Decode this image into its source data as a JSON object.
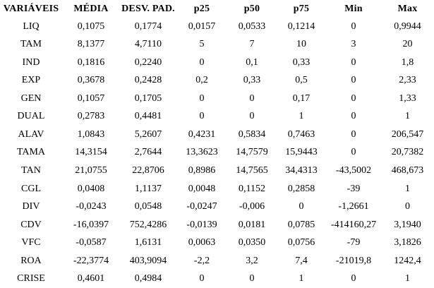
{
  "table": {
    "columns": [
      "VARIÁVEIS",
      "MÉDIA",
      "DESV. PAD.",
      "p25",
      "p50",
      "p75",
      "Min",
      "Max"
    ],
    "rows": [
      [
        "LIQ",
        "0,1075",
        "0,1774",
        "0,0157",
        "0,0533",
        "0,1214",
        "0",
        "0,9944"
      ],
      [
        "TAM",
        "8,1377",
        "4,7110",
        "5",
        "7",
        "10",
        "3",
        "20"
      ],
      [
        "IND",
        "0,1816",
        "0,2240",
        "0",
        "0,1",
        "0,33",
        "0",
        "1,8"
      ],
      [
        "EXP",
        "0,3678",
        "0,2428",
        "0,2",
        "0,33",
        "0,5",
        "0",
        "2,33"
      ],
      [
        "GEN",
        "0,1057",
        "0,1705",
        "0",
        "0",
        "0,17",
        "0",
        "1,33"
      ],
      [
        "DUAL",
        "0,2783",
        "0,4481",
        "0",
        "0",
        "1",
        "0",
        "1"
      ],
      [
        "ALAV",
        "1,0843",
        "5,2607",
        "0,4231",
        "0,5834",
        "0,7463",
        "0",
        "206,547"
      ],
      [
        "TAMA",
        "14,3154",
        "2,7644",
        "13,3623",
        "14,7579",
        "15,9443",
        "0",
        "20,7382"
      ],
      [
        "TAN",
        "21,0755",
        "22,8706",
        "0,8986",
        "14,7565",
        "34,4313",
        "-43,5002",
        "468,673"
      ],
      [
        "CGL",
        "0,0408",
        "1,1137",
        "0,0048",
        "0,1152",
        "0,2858",
        "-39",
        "1"
      ],
      [
        "DIV",
        "-0,0243",
        "0,0548",
        "-0,0247",
        "-0,006",
        "0",
        "-1,2661",
        "0"
      ],
      [
        "CDV",
        "-16,0397",
        "752,4286",
        "-0,0139",
        "0,0181",
        "0,0785",
        "-414160,27",
        "3,1940"
      ],
      [
        "VFC",
        "-0,0587",
        "1,6131",
        "0,0063",
        "0,0350",
        "0,0756",
        "-79",
        "3,1826"
      ],
      [
        "ROA",
        "-22,3774",
        "403,9094",
        "-2,2",
        "3,2",
        "7,4",
        "-21019,8",
        "1242,4"
      ],
      [
        "CRISE",
        "0,4601",
        "0,4984",
        "0",
        "0",
        "1",
        "0",
        "1"
      ]
    ]
  }
}
